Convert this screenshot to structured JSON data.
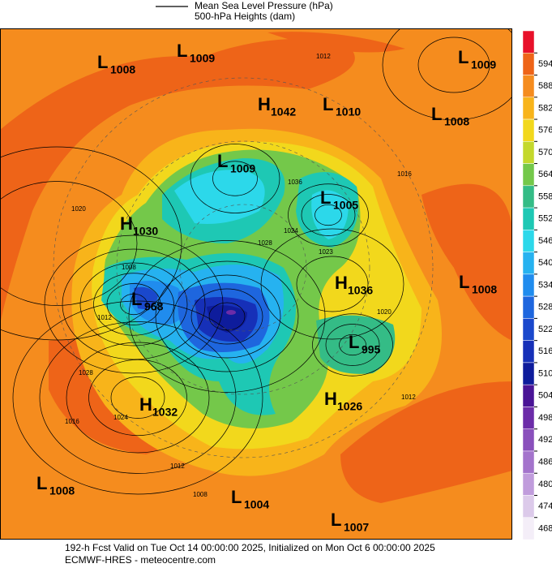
{
  "header": {
    "legend_line1": "Mean Sea Level Pressure (hPa)",
    "legend_line2": "500-hPa Heights (dam)"
  },
  "centers": [
    {
      "letter": "L",
      "value": 1008
    },
    {
      "letter": "L",
      "value": 1009
    },
    {
      "letter": "L",
      "value": 1009
    },
    {
      "letter": "H",
      "value": 1042
    },
    {
      "letter": "L",
      "value": 1010
    },
    {
      "letter": "L",
      "value": 1008
    },
    {
      "letter": "L",
      "value": 1009
    },
    {
      "letter": "L",
      "value": 1005
    },
    {
      "letter": "H",
      "value": 1030
    },
    {
      "letter": "H",
      "value": 1036
    },
    {
      "letter": "L",
      "value": 1008
    },
    {
      "letter": "L",
      "value": 968
    },
    {
      "letter": "L",
      "value": 995
    },
    {
      "letter": "H",
      "value": 1026
    },
    {
      "letter": "H",
      "value": 1032
    },
    {
      "letter": "L",
      "value": 1008
    },
    {
      "letter": "L",
      "value": 1004
    },
    {
      "letter": "L",
      "value": 1007
    }
  ],
  "contour_labels": [
    1012,
    1016,
    1020,
    1036,
    1024,
    1028,
    1023,
    1008,
    1020,
    1012,
    1028,
    1016,
    1024,
    1012,
    1012,
    1008
  ],
  "colorbar": {
    "ticks": [
      594,
      588,
      582,
      576,
      570,
      564,
      558,
      552,
      546,
      540,
      534,
      528,
      522,
      516,
      510,
      504,
      498,
      492,
      486,
      480,
      474,
      468
    ],
    "colors": [
      "#e8102a",
      "#ee6418",
      "#f58c1e",
      "#f8b41a",
      "#f2d81c",
      "#c4d82c",
      "#74c84a",
      "#34bc86",
      "#1ec8b4",
      "#2cd8ea",
      "#26b2f0",
      "#208cee",
      "#1e66de",
      "#1a48cc",
      "#1630b8",
      "#0e1c9c",
      "#4a1496",
      "#6c2ca8",
      "#8a50bc",
      "#a474cc",
      "#c09cdc",
      "#dccaea",
      "#f4eef8"
    ]
  },
  "footer": {
    "line1": "192-h Fcst Valid on Tue Oct 14 00:00:00 2025, Initialized on Mon Oct  6 00:00:00 2025",
    "line2": "ECMWF-HRES  - meteocentre.com"
  }
}
